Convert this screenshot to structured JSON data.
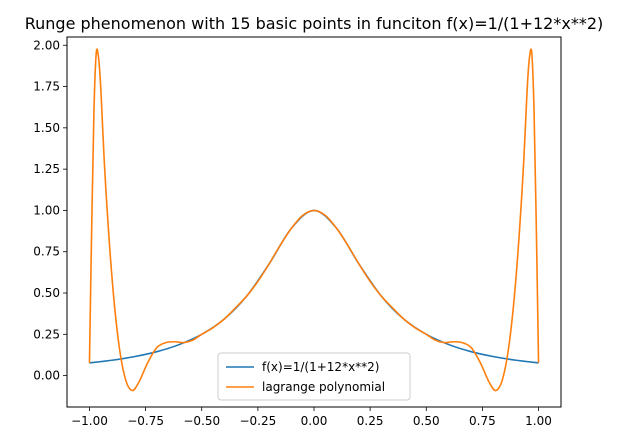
{
  "chart_data": {
    "type": "line",
    "title": "Runge phenomenon with 15 basic points in funciton f(x)=1/(1+12*x**2)",
    "xlabel": "",
    "ylabel": "",
    "xlim": [
      -1.1,
      1.1
    ],
    "ylim": [
      -0.19,
      2.05
    ],
    "x_ticks": [
      -1.0,
      -0.75,
      -0.5,
      -0.25,
      0.0,
      0.25,
      0.5,
      0.75,
      1.0
    ],
    "x_tick_labels": [
      "−1.00",
      "−0.75",
      "−0.50",
      "−0.25",
      "0.00",
      "0.25",
      "0.50",
      "0.75",
      "1.00"
    ],
    "y_ticks": [
      0.0,
      0.25,
      0.5,
      0.75,
      1.0,
      1.25,
      1.5,
      1.75,
      2.0
    ],
    "y_tick_labels": [
      "0.00",
      "0.25",
      "0.50",
      "0.75",
      "1.00",
      "1.25",
      "1.50",
      "1.75",
      "2.00"
    ],
    "grid": false,
    "legend_position": "bottom-center",
    "series": [
      {
        "name": "f(x)=1/(1+12*x**2)",
        "color": "#1f77b4",
        "points": [
          [
            -1.0,
            0.077
          ],
          [
            -0.9,
            0.093
          ],
          [
            -0.8,
            0.115
          ],
          [
            -0.7,
            0.145
          ],
          [
            -0.6,
            0.188
          ],
          [
            -0.5,
            0.25
          ],
          [
            -0.4,
            0.342
          ],
          [
            -0.3,
            0.481
          ],
          [
            -0.2,
            0.676
          ],
          [
            -0.1,
            0.893
          ],
          [
            0.0,
            1.0
          ],
          [
            0.1,
            0.893
          ],
          [
            0.2,
            0.676
          ],
          [
            0.3,
            0.481
          ],
          [
            0.4,
            0.342
          ],
          [
            0.5,
            0.25
          ],
          [
            0.6,
            0.188
          ],
          [
            0.7,
            0.145
          ],
          [
            0.8,
            0.115
          ],
          [
            0.9,
            0.093
          ],
          [
            1.0,
            0.077
          ]
        ]
      },
      {
        "name": "lagrange polynomial",
        "color": "#ff7f0e",
        "points": [
          [
            -1.0,
            0.077
          ],
          [
            -0.99,
            0.9
          ],
          [
            -0.98,
            1.6
          ],
          [
            -0.97,
            1.95
          ],
          [
            -0.96,
            1.93
          ],
          [
            -0.95,
            1.75
          ],
          [
            -0.93,
            1.2
          ],
          [
            -0.9,
            0.6
          ],
          [
            -0.87,
            0.2
          ],
          [
            -0.84,
            -0.02
          ],
          [
            -0.81,
            -0.09
          ],
          [
            -0.78,
            -0.04
          ],
          [
            -0.74,
            0.08
          ],
          [
            -0.7,
            0.17
          ],
          [
            -0.66,
            0.2
          ],
          [
            -0.62,
            0.205
          ],
          [
            -0.58,
            0.2
          ],
          [
            -0.54,
            0.215
          ],
          [
            -0.5,
            0.25
          ],
          [
            -0.45,
            0.29
          ],
          [
            -0.4,
            0.342
          ],
          [
            -0.35,
            0.41
          ],
          [
            -0.3,
            0.481
          ],
          [
            -0.25,
            0.57
          ],
          [
            -0.2,
            0.676
          ],
          [
            -0.15,
            0.79
          ],
          [
            -0.1,
            0.893
          ],
          [
            -0.05,
            0.97
          ],
          [
            0.0,
            1.0
          ],
          [
            0.05,
            0.97
          ],
          [
            0.1,
            0.893
          ],
          [
            0.15,
            0.79
          ],
          [
            0.2,
            0.676
          ],
          [
            0.25,
            0.57
          ],
          [
            0.3,
            0.481
          ],
          [
            0.35,
            0.41
          ],
          [
            0.4,
            0.342
          ],
          [
            0.45,
            0.29
          ],
          [
            0.5,
            0.25
          ],
          [
            0.54,
            0.215
          ],
          [
            0.58,
            0.2
          ],
          [
            0.62,
            0.205
          ],
          [
            0.66,
            0.2
          ],
          [
            0.7,
            0.17
          ],
          [
            0.74,
            0.08
          ],
          [
            0.78,
            -0.04
          ],
          [
            0.81,
            -0.09
          ],
          [
            0.84,
            -0.02
          ],
          [
            0.87,
            0.2
          ],
          [
            0.9,
            0.6
          ],
          [
            0.93,
            1.2
          ],
          [
            0.95,
            1.75
          ],
          [
            0.96,
            1.93
          ],
          [
            0.97,
            1.95
          ],
          [
            0.98,
            1.6
          ],
          [
            0.99,
            0.9
          ],
          [
            1.0,
            0.077
          ]
        ]
      }
    ]
  }
}
